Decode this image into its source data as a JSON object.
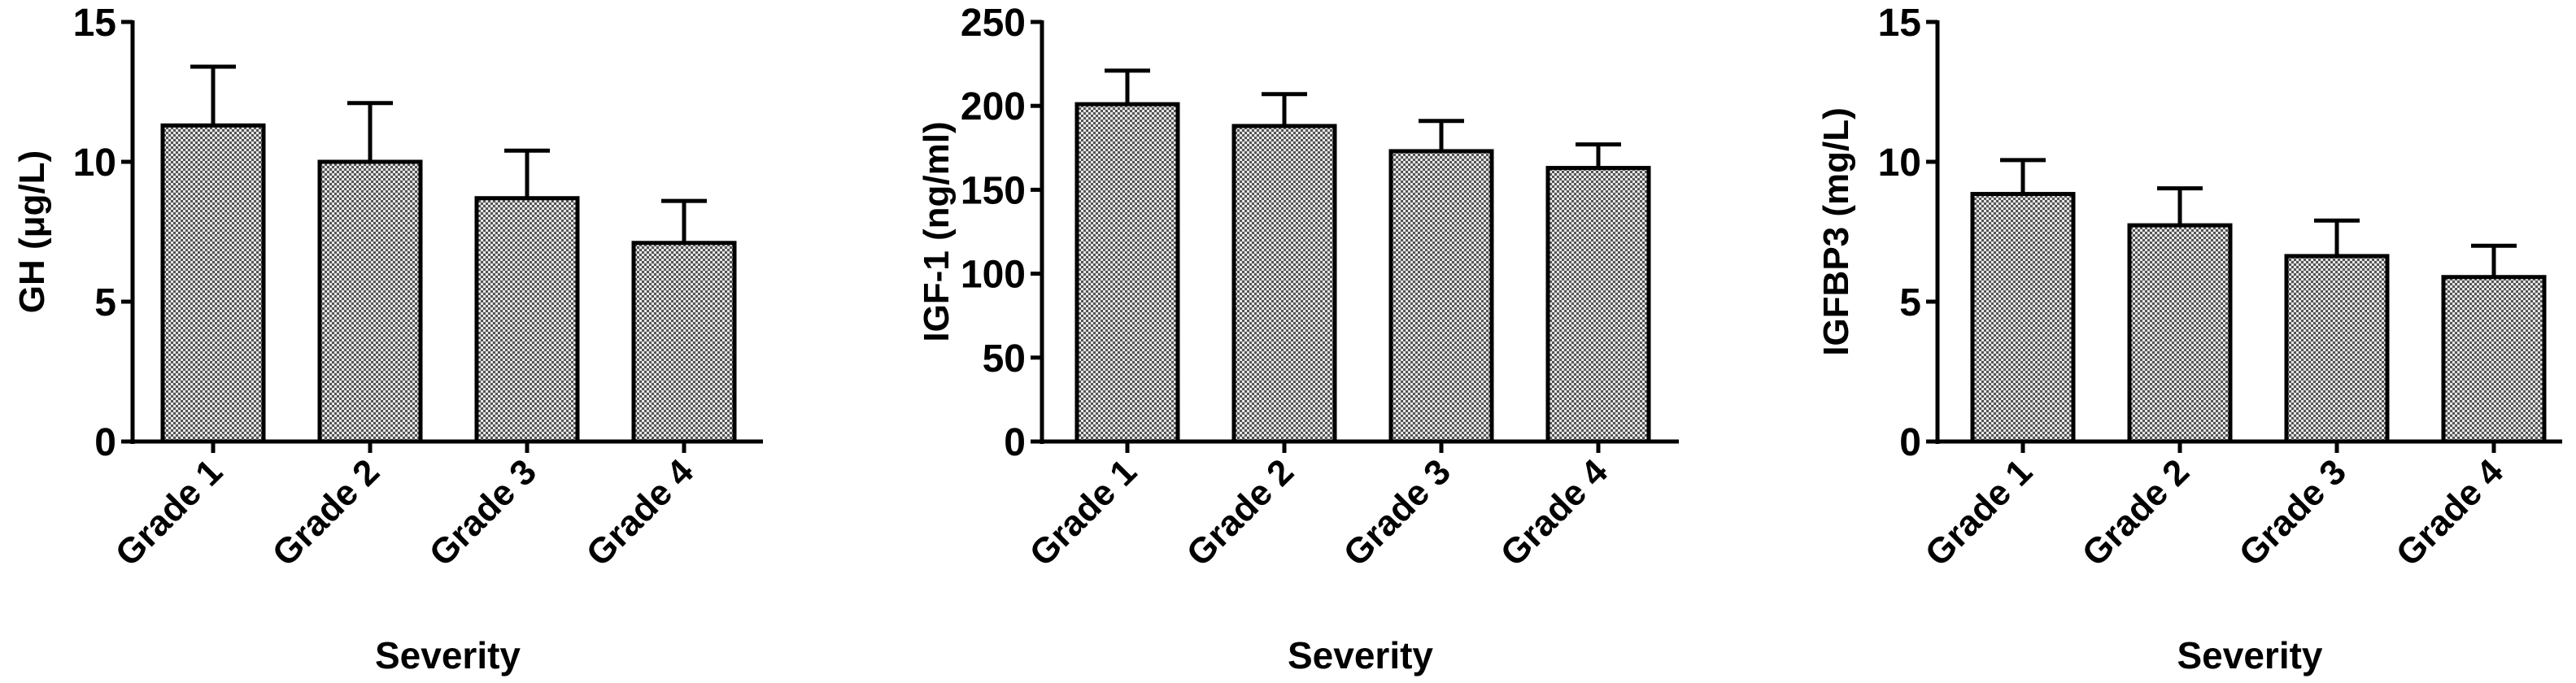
{
  "chart_data": [
    {
      "type": "bar",
      "title": "",
      "xlabel": "Severity",
      "ylabel": "GH (μg/L)",
      "ylim": [
        0,
        15
      ],
      "yticks": [
        0,
        5,
        10,
        15
      ],
      "categories": [
        "Grade 1",
        "Grade 2",
        "Grade 3",
        "Grade 4"
      ],
      "values": [
        11.3,
        10.0,
        8.7,
        7.1
      ],
      "error_upper": [
        13.4,
        12.1,
        10.4,
        8.6
      ],
      "fill": "checkered gray",
      "grid": false
    },
    {
      "type": "bar",
      "title": "",
      "xlabel": "Severity",
      "ylabel": "IGF-1 (ng/ml)",
      "ylim": [
        0,
        250
      ],
      "yticks": [
        0,
        50,
        100,
        150,
        200,
        250
      ],
      "categories": [
        "Grade 1",
        "Grade 2",
        "Grade 3",
        "Grade 4"
      ],
      "values": [
        201,
        188,
        173,
        163
      ],
      "error_upper": [
        221,
        207,
        191,
        177
      ],
      "fill": "checkered gray",
      "grid": false
    },
    {
      "type": "bar",
      "title": "",
      "xlabel": "Severity",
      "ylabel": "IGFBP3 (mg/L)",
      "ylim": [
        0,
        15
      ],
      "yticks": [
        0,
        5,
        10,
        15
      ],
      "categories": [
        "Grade 1",
        "Grade 2",
        "Grade 3",
        "Grade 4"
      ],
      "values": [
        8.85,
        7.73,
        6.63,
        5.88
      ],
      "error_upper": [
        10.06,
        9.05,
        7.9,
        7.0
      ],
      "fill": "checkered gray",
      "grid": false
    }
  ]
}
